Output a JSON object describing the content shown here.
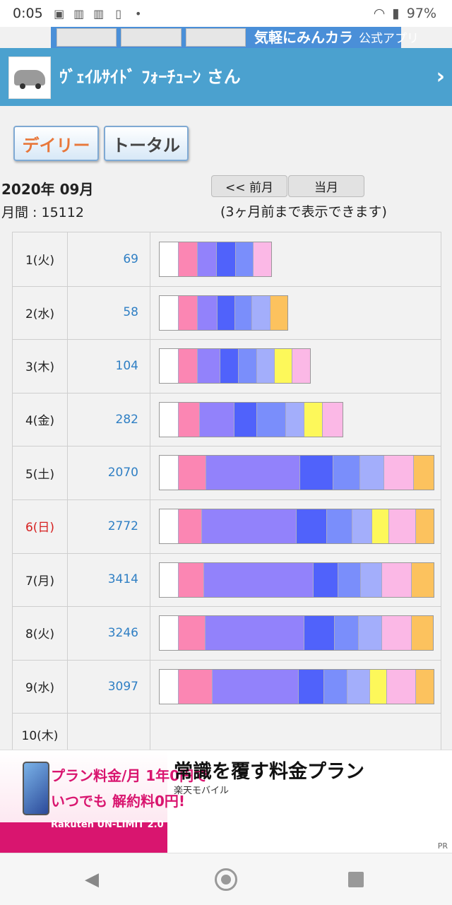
{
  "status_bar": {
    "time": "0:05",
    "battery": "97%"
  },
  "top_banner": {
    "text": "気軽にみんカラ",
    "sub": "公式アプリ"
  },
  "header": {
    "name": "ｳﾞｪｲﾙｻｲﾄﾞ ﾌｫｰﾁｭｰﾝ さん"
  },
  "tabs": {
    "daily": "デイリー",
    "total": "トータル"
  },
  "period": "2020年 09月",
  "monthly": "月間 : 15112",
  "nav": {
    "prev": "<< 前月",
    "current": "当月"
  },
  "note": "(3ヶ月前まで表示できます)",
  "colors": {
    "pink": "#fb86b3",
    "violet": "#9282fb",
    "blue": "#5062fb",
    "medblue": "#7a8efb",
    "lightblue": "#a3aefb",
    "yellow": "#fdf85a",
    "lightpink": "#fbb8e6",
    "orange": "#fcc25e"
  },
  "rows": [
    {
      "day": "1(火)",
      "count": "69",
      "segments": [
        {
          "c": "pink",
          "v": 27
        },
        {
          "c": "violet",
          "v": 27
        },
        {
          "c": "blue",
          "v": 27
        },
        {
          "c": "medblue",
          "v": 25
        },
        {
          "c": "lightpink",
          "v": 25
        }
      ]
    },
    {
      "day": "2(水)",
      "count": "58",
      "segments": [
        {
          "c": "pink",
          "v": 27
        },
        {
          "c": "violet",
          "v": 28
        },
        {
          "c": "blue",
          "v": 25
        },
        {
          "c": "medblue",
          "v": 24
        },
        {
          "c": "lightblue",
          "v": 26
        },
        {
          "c": "orange",
          "v": 24
        }
      ]
    },
    {
      "day": "3(木)",
      "count": "104",
      "segments": [
        {
          "c": "pink",
          "v": 27
        },
        {
          "c": "violet",
          "v": 32
        },
        {
          "c": "blue",
          "v": 26
        },
        {
          "c": "medblue",
          "v": 26
        },
        {
          "c": "lightblue",
          "v": 25
        },
        {
          "c": "yellow",
          "v": 25
        },
        {
          "c": "lightpink",
          "v": 25
        }
      ]
    },
    {
      "day": "4(金)",
      "count": "282",
      "segments": [
        {
          "c": "pink",
          "v": 30
        },
        {
          "c": "violet",
          "v": 49
        },
        {
          "c": "blue",
          "v": 32
        },
        {
          "c": "medblue",
          "v": 41
        },
        {
          "c": "lightblue",
          "v": 26
        },
        {
          "c": "yellow",
          "v": 26
        },
        {
          "c": "lightpink",
          "v": 28
        }
      ]
    },
    {
      "day": "5(土)",
      "count": "2070",
      "segments": [
        {
          "c": "pink",
          "v": 39
        },
        {
          "c": "violet",
          "v": 133
        },
        {
          "c": "blue",
          "v": 47
        },
        {
          "c": "medblue",
          "v": 38
        },
        {
          "c": "lightblue",
          "v": 34
        },
        {
          "c": "lightpink",
          "v": 42
        },
        {
          "c": "orange",
          "v": 28
        }
      ]
    },
    {
      "day": "6(日)",
      "count": "2772",
      "day_color": "sunday",
      "segments": [
        {
          "c": "pink",
          "v": 33
        },
        {
          "c": "violet",
          "v": 134
        },
        {
          "c": "blue",
          "v": 43
        },
        {
          "c": "medblue",
          "v": 36
        },
        {
          "c": "lightblue",
          "v": 28
        },
        {
          "c": "yellow",
          "v": 24
        },
        {
          "c": "lightpink",
          "v": 38
        },
        {
          "c": "orange",
          "v": 25
        }
      ]
    },
    {
      "day": "7(月)",
      "count": "3414",
      "segments": [
        {
          "c": "pink",
          "v": 36
        },
        {
          "c": "violet",
          "v": 155
        },
        {
          "c": "blue",
          "v": 35
        },
        {
          "c": "medblue",
          "v": 32
        },
        {
          "c": "lightblue",
          "v": 30
        },
        {
          "c": "lightpink",
          "v": 42
        },
        {
          "c": "orange",
          "v": 31
        }
      ]
    },
    {
      "day": "8(火)",
      "count": "3246",
      "segments": [
        {
          "c": "pink",
          "v": 38
        },
        {
          "c": "violet",
          "v": 140
        },
        {
          "c": "blue",
          "v": 43
        },
        {
          "c": "medblue",
          "v": 34
        },
        {
          "c": "lightblue",
          "v": 33
        },
        {
          "c": "lightpink",
          "v": 42
        },
        {
          "c": "orange",
          "v": 30
        }
      ]
    },
    {
      "day": "9(水)",
      "count": "3097",
      "segments": [
        {
          "c": "pink",
          "v": 48
        },
        {
          "c": "violet",
          "v": 122
        },
        {
          "c": "blue",
          "v": 36
        },
        {
          "c": "medblue",
          "v": 33
        },
        {
          "c": "lightblue",
          "v": 32
        },
        {
          "c": "yellow",
          "v": 24
        },
        {
          "c": "lightpink",
          "v": 41
        },
        {
          "c": "orange",
          "v": 25
        }
      ]
    },
    {
      "day": "10(木)",
      "count": "",
      "segments": []
    }
  ],
  "ad": {
    "line1": "プラン料金/月 1年0円で",
    "line2": "いつでも 解約料0円!",
    "brand": "Rakuten UN-LIMIT 2.0",
    "title": "常識を覆す料金プラン",
    "sub": "楽天モバイル",
    "pr": "PR"
  }
}
